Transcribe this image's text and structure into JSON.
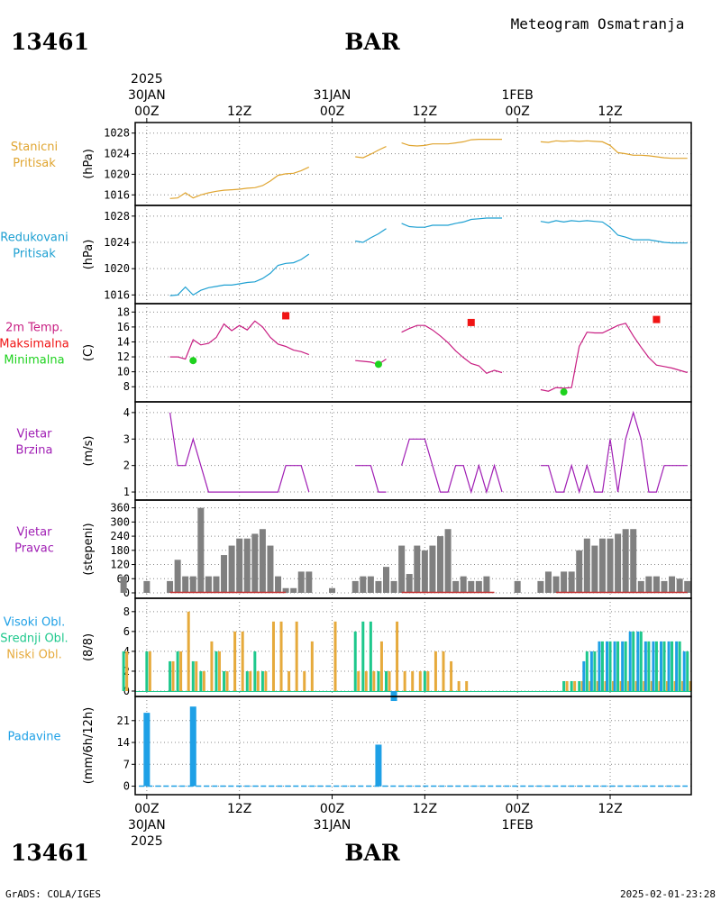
{
  "header": {
    "title": "Meteogram Osmatranja",
    "station": "13461",
    "location": "BAR",
    "year": "2025",
    "footer_left": "GrADS: COLA/IGES",
    "timestamp": "2025-02-01-23:28"
  },
  "time_axis": {
    "ticks": [
      {
        "hour": 0,
        "l1": "00Z",
        "top": "30JAN",
        "top2": "2025",
        "bot1": "30JAN",
        "bot2": "2025"
      },
      {
        "hour": 12,
        "l1": "12Z"
      },
      {
        "hour": 24,
        "l1": "00Z",
        "top": "31JAN",
        "bot1": "31JAN"
      },
      {
        "hour": 36,
        "l1": "12Z"
      },
      {
        "hour": 48,
        "l1": "00Z",
        "top": "1FEB",
        "bot1": "1FEB"
      },
      {
        "hour": 60,
        "l1": "12Z"
      }
    ],
    "x_range": [
      -1.5,
      70.5
    ]
  },
  "colors": {
    "station_pressure": "#e0a530",
    "reduced_pressure": "#1ea0d2",
    "temp_line": "#c81e82",
    "temp_max": "#f01414",
    "temp_min": "#1ed21e",
    "wind": "#a01eb4",
    "wind_dir": "#808080",
    "wind_dir_base": "#c03030",
    "cloud_high": "#1ea0e6",
    "cloud_mid": "#1ec88c",
    "cloud_low": "#e6aa3c",
    "precip": "#1ea0e6"
  },
  "chart_data": [
    {
      "type": "line",
      "id": "station_pressure",
      "label_lines": [
        "Stanicni",
        "Pritisak"
      ],
      "ylabel": "(hPa)",
      "ylim": [
        1015,
        1029
      ],
      "yticks": [
        1016,
        1020,
        1024,
        1028
      ],
      "series": [
        {
          "x": [
            3,
            4,
            5,
            6,
            7,
            8,
            9,
            10,
            11,
            12,
            13,
            14,
            15,
            16,
            17,
            18,
            19,
            20,
            21
          ],
          "values": [
            1015.3,
            1015.4,
            1016.4,
            1015.4,
            1016.0,
            1016.4,
            1016.7,
            1016.9,
            1017.0,
            1017.1,
            1017.3,
            1017.4,
            1017.8,
            1018.7,
            1019.8,
            1020.1,
            1020.2,
            1020.7,
            1021.4
          ]
        },
        {
          "x": [
            27,
            28,
            29,
            30,
            31
          ],
          "values": [
            1023.4,
            1023.2,
            1023.9,
            1024.7,
            1025.4
          ]
        },
        {
          "x": [
            33,
            34,
            35,
            36,
            37,
            38,
            39,
            40,
            41,
            42,
            43,
            44,
            45,
            46
          ],
          "values": [
            1026.1,
            1025.6,
            1025.5,
            1025.6,
            1025.9,
            1025.9,
            1025.9,
            1026.1,
            1026.3,
            1026.7,
            1026.8,
            1026.8,
            1026.8,
            1026.8
          ]
        },
        {
          "x": [
            51,
            52,
            53,
            54,
            55,
            56,
            57,
            58,
            59,
            60,
            61,
            62,
            63,
            64,
            65,
            66,
            67,
            68,
            69,
            70
          ],
          "values": [
            1026.3,
            1026.2,
            1026.5,
            1026.4,
            1026.5,
            1026.4,
            1026.5,
            1026.4,
            1026.3,
            1025.6,
            1024.2,
            1024.0,
            1023.7,
            1023.7,
            1023.6,
            1023.4,
            1023.2,
            1023.1,
            1023.1,
            1023.1
          ]
        }
      ]
    },
    {
      "type": "line",
      "id": "reduced_pressure",
      "label_lines": [
        "Redukovani",
        "Pritisak"
      ],
      "ylabel": "(hPa)",
      "ylim": [
        1015.5,
        1028.8
      ],
      "yticks": [
        1016,
        1020,
        1024,
        1028
      ],
      "series": [
        {
          "x": [
            3,
            4,
            5,
            6,
            7,
            8,
            9,
            10,
            11,
            12,
            13,
            14,
            15,
            16,
            17,
            18,
            19,
            20,
            21
          ],
          "values": [
            1015.9,
            1016.0,
            1017.2,
            1016.0,
            1016.7,
            1017.1,
            1017.3,
            1017.5,
            1017.5,
            1017.7,
            1017.9,
            1018.0,
            1018.5,
            1019.3,
            1020.5,
            1020.8,
            1020.9,
            1021.4,
            1022.2
          ]
        },
        {
          "x": [
            27,
            28,
            29,
            30,
            31
          ],
          "values": [
            1024.2,
            1024.0,
            1024.7,
            1025.3,
            1026.1
          ]
        },
        {
          "x": [
            33,
            34,
            35,
            36,
            37,
            38,
            39,
            40,
            41,
            42,
            43,
            44,
            45,
            46
          ],
          "values": [
            1026.9,
            1026.4,
            1026.3,
            1026.3,
            1026.6,
            1026.6,
            1026.6,
            1026.9,
            1027.1,
            1027.5,
            1027.6,
            1027.7,
            1027.7,
            1027.7
          ]
        },
        {
          "x": [
            51,
            52,
            53,
            54,
            55,
            56,
            57,
            58,
            59,
            60,
            61,
            62,
            63,
            64,
            65,
            66,
            67,
            68,
            69,
            70
          ],
          "values": [
            1027.2,
            1027.0,
            1027.3,
            1027.1,
            1027.3,
            1027.2,
            1027.3,
            1027.2,
            1027.1,
            1026.3,
            1025.1,
            1024.8,
            1024.4,
            1024.4,
            1024.4,
            1024.2,
            1024.0,
            1023.9,
            1023.9,
            1023.9
          ]
        }
      ]
    },
    {
      "type": "line",
      "id": "temperature",
      "label_lines": [
        "2m Temp.",
        "Maksimalna",
        "Minimalna"
      ],
      "ylabel": "(C)",
      "ylim": [
        6.7,
        18.4
      ],
      "yticks": [
        8,
        10,
        12,
        14,
        16,
        18
      ],
      "series": [
        {
          "x": [
            3,
            4,
            5,
            6,
            7,
            8,
            9,
            10,
            11,
            12,
            13,
            14,
            15,
            16,
            17,
            18,
            19,
            20,
            21
          ],
          "values": [
            12.0,
            12.0,
            11.7,
            14.3,
            13.6,
            13.8,
            14.6,
            16.4,
            15.5,
            16.2,
            15.6,
            16.8,
            16.0,
            14.6,
            13.7,
            13.4,
            12.9,
            12.7,
            12.3
          ]
        },
        {
          "x": [
            27,
            28,
            29,
            30,
            31
          ],
          "values": [
            11.5,
            11.4,
            11.3,
            11.0,
            11.7
          ]
        },
        {
          "x": [
            33,
            34,
            35,
            36,
            37,
            38,
            39,
            40,
            41,
            42,
            43,
            44,
            45,
            46
          ],
          "values": [
            15.3,
            15.8,
            16.2,
            16.2,
            15.6,
            14.8,
            13.9,
            12.8,
            11.9,
            11.1,
            10.8,
            9.8,
            10.2,
            9.9
          ]
        },
        {
          "x": [
            51,
            52,
            53,
            54,
            55,
            56,
            57,
            58,
            59,
            60,
            61,
            62,
            63,
            64,
            65,
            66,
            67,
            68,
            69,
            70
          ],
          "values": [
            7.6,
            7.4,
            7.9,
            7.8,
            7.9,
            13.4,
            15.3,
            15.2,
            15.2,
            15.7,
            16.2,
            16.5,
            14.8,
            13.3,
            11.9,
            10.9,
            10.7,
            10.5,
            10.2,
            9.9
          ]
        }
      ],
      "max_points": {
        "x": [
          18,
          42,
          66
        ],
        "values": [
          17.5,
          16.6,
          17.0
        ]
      },
      "min_points": {
        "x": [
          6,
          30,
          54
        ],
        "values": [
          11.5,
          11.0,
          7.3
        ]
      }
    },
    {
      "type": "line",
      "id": "wind_speed",
      "label_lines": [
        "Vjetar",
        "Brzina"
      ],
      "ylabel": "(m/s)",
      "ylim": [
        0.9,
        4.2
      ],
      "yticks": [
        1,
        2,
        3,
        4
      ],
      "series": [
        {
          "x": [
            3,
            4,
            5,
            6,
            7,
            8,
            9,
            10,
            11,
            12,
            13,
            14,
            15,
            16,
            17,
            18,
            19,
            20,
            21
          ],
          "values": [
            4,
            2,
            2,
            3,
            2,
            1,
            1,
            1,
            1,
            1,
            1,
            1,
            1,
            1,
            1,
            2,
            2,
            2,
            1
          ]
        },
        {
          "x": [
            27,
            28,
            29,
            30,
            31
          ],
          "values": [
            2,
            2,
            2,
            1,
            1
          ]
        },
        {
          "x": [
            33,
            34,
            35,
            36,
            37,
            38,
            39,
            40,
            41,
            42,
            43,
            44,
            45,
            46
          ],
          "values": [
            2,
            3,
            3,
            3,
            2,
            1,
            1,
            2,
            2,
            1,
            2,
            1,
            2,
            1
          ]
        },
        {
          "x": [
            51,
            52,
            53,
            54,
            55,
            56,
            57,
            58,
            59,
            60,
            61,
            62,
            63,
            64,
            65,
            66,
            67,
            68,
            69,
            70
          ],
          "values": [
            2,
            2,
            1,
            1,
            2,
            1,
            2,
            1,
            1,
            3,
            1,
            3,
            4,
            3,
            1,
            1,
            2,
            2,
            2,
            2
          ]
        }
      ]
    },
    {
      "type": "bar",
      "id": "wind_direction",
      "label_lines": [
        "Vjetar",
        "Pravac"
      ],
      "ylabel": "(stepeni)",
      "ylim": [
        0,
        370
      ],
      "yticks": [
        0,
        60,
        120,
        180,
        240,
        300,
        360
      ],
      "x": [
        -3,
        0,
        3,
        4,
        5,
        6,
        7,
        8,
        9,
        10,
        11,
        12,
        13,
        14,
        15,
        16,
        17,
        18,
        19,
        20,
        21,
        24,
        27,
        28,
        29,
        30,
        31,
        32,
        33,
        34,
        35,
        36,
        37,
        38,
        39,
        40,
        41,
        42,
        43,
        44,
        45,
        46,
        48,
        51,
        52,
        53,
        54,
        55,
        56,
        57,
        58,
        59,
        60,
        61,
        62,
        63,
        64,
        65,
        66,
        67,
        68,
        69,
        70
      ],
      "values": [
        70,
        50,
        50,
        140,
        70,
        70,
        360,
        70,
        70,
        160,
        200,
        230,
        230,
        250,
        270,
        200,
        70,
        20,
        20,
        90,
        90,
        20,
        50,
        70,
        70,
        50,
        110,
        50,
        200,
        80,
        200,
        180,
        200,
        240,
        270,
        50,
        70,
        50,
        50,
        70,
        0,
        0,
        50,
        50,
        90,
        70,
        90,
        90,
        180,
        230,
        200,
        230,
        230,
        250,
        270,
        270,
        50,
        70,
        70,
        50,
        70,
        60,
        50
      ],
      "base_segments": [
        [
          3,
          18
        ],
        [
          33,
          45
        ],
        [
          53,
          70
        ]
      ]
    },
    {
      "type": "bar",
      "id": "clouds",
      "label_lines": [
        "Visoki Obl.",
        "Srednji Obl.",
        "Niski Obl."
      ],
      "ylabel": "(8/8)",
      "ylim": [
        0,
        8.8
      ],
      "yticks": [
        0,
        2,
        4,
        6,
        8
      ],
      "x": [
        -3,
        0,
        3,
        4,
        5,
        6,
        7,
        8,
        9,
        10,
        11,
        12,
        13,
        14,
        15,
        16,
        17,
        18,
        19,
        20,
        21,
        24,
        27,
        28,
        29,
        30,
        31,
        32,
        33,
        34,
        35,
        36,
        37,
        38,
        39,
        40,
        41,
        42,
        43,
        44,
        45,
        46,
        48,
        51,
        52,
        53,
        54,
        55,
        56,
        57,
        58,
        59,
        60,
        61,
        62,
        63,
        64,
        65,
        66,
        67,
        68,
        69,
        70
      ],
      "series": [
        {
          "name": "Visoki Obl.",
          "values": [
            0,
            0,
            0,
            0,
            0,
            0,
            0,
            0,
            0,
            0,
            0,
            0,
            0,
            0,
            0,
            0,
            0,
            0,
            0,
            0,
            0,
            0,
            0,
            0,
            0,
            0,
            0,
            0,
            0,
            0,
            0,
            0,
            0,
            0,
            0,
            0,
            0,
            0,
            0,
            0,
            0,
            0,
            0,
            0,
            0,
            0,
            0,
            0,
            0,
            3,
            4,
            5,
            5,
            5,
            5,
            6,
            6,
            5,
            5,
            5,
            5,
            5,
            4
          ]
        },
        {
          "name": "Srednji Obl.",
          "values": [
            4,
            4,
            3,
            4,
            0,
            3,
            2,
            0,
            4,
            2,
            0,
            0,
            2,
            4,
            2,
            0,
            0,
            0,
            0,
            0,
            0,
            0,
            6,
            7,
            7,
            2,
            2,
            0,
            0,
            0,
            0,
            2,
            0,
            0,
            0,
            0,
            0,
            0,
            0,
            0,
            0,
            0,
            0,
            0,
            0,
            0,
            1,
            1,
            1,
            4,
            4,
            5,
            5,
            5,
            5,
            6,
            6,
            5,
            5,
            5,
            5,
            5,
            4
          ]
        },
        {
          "name": "Niski Obl.",
          "values": [
            4,
            4,
            3,
            4,
            8,
            3,
            2,
            5,
            4,
            2,
            6,
            6,
            2,
            2,
            2,
            7,
            7,
            2,
            7,
            2,
            5,
            7,
            2,
            2,
            2,
            5,
            2,
            7,
            2,
            2,
            2,
            2,
            4,
            4,
            3,
            1,
            1,
            0,
            0,
            0,
            0,
            0,
            0,
            0,
            0,
            0,
            1,
            1,
            1,
            1,
            1,
            1,
            1,
            1,
            1,
            1,
            1,
            1,
            1,
            1,
            1,
            1,
            1
          ]
        }
      ],
      "negative_marker": {
        "x": 32,
        "value": -1
      }
    },
    {
      "type": "bar",
      "id": "precipitation",
      "label_lines": [
        "Padavine"
      ],
      "ylabel": "(mm/6h/12h)",
      "ylim": [
        -1,
        27
      ],
      "yticks": [
        0,
        7,
        14,
        21
      ],
      "x": [
        0,
        6,
        30
      ],
      "values": [
        23.5,
        25.5,
        13.3
      ]
    }
  ]
}
